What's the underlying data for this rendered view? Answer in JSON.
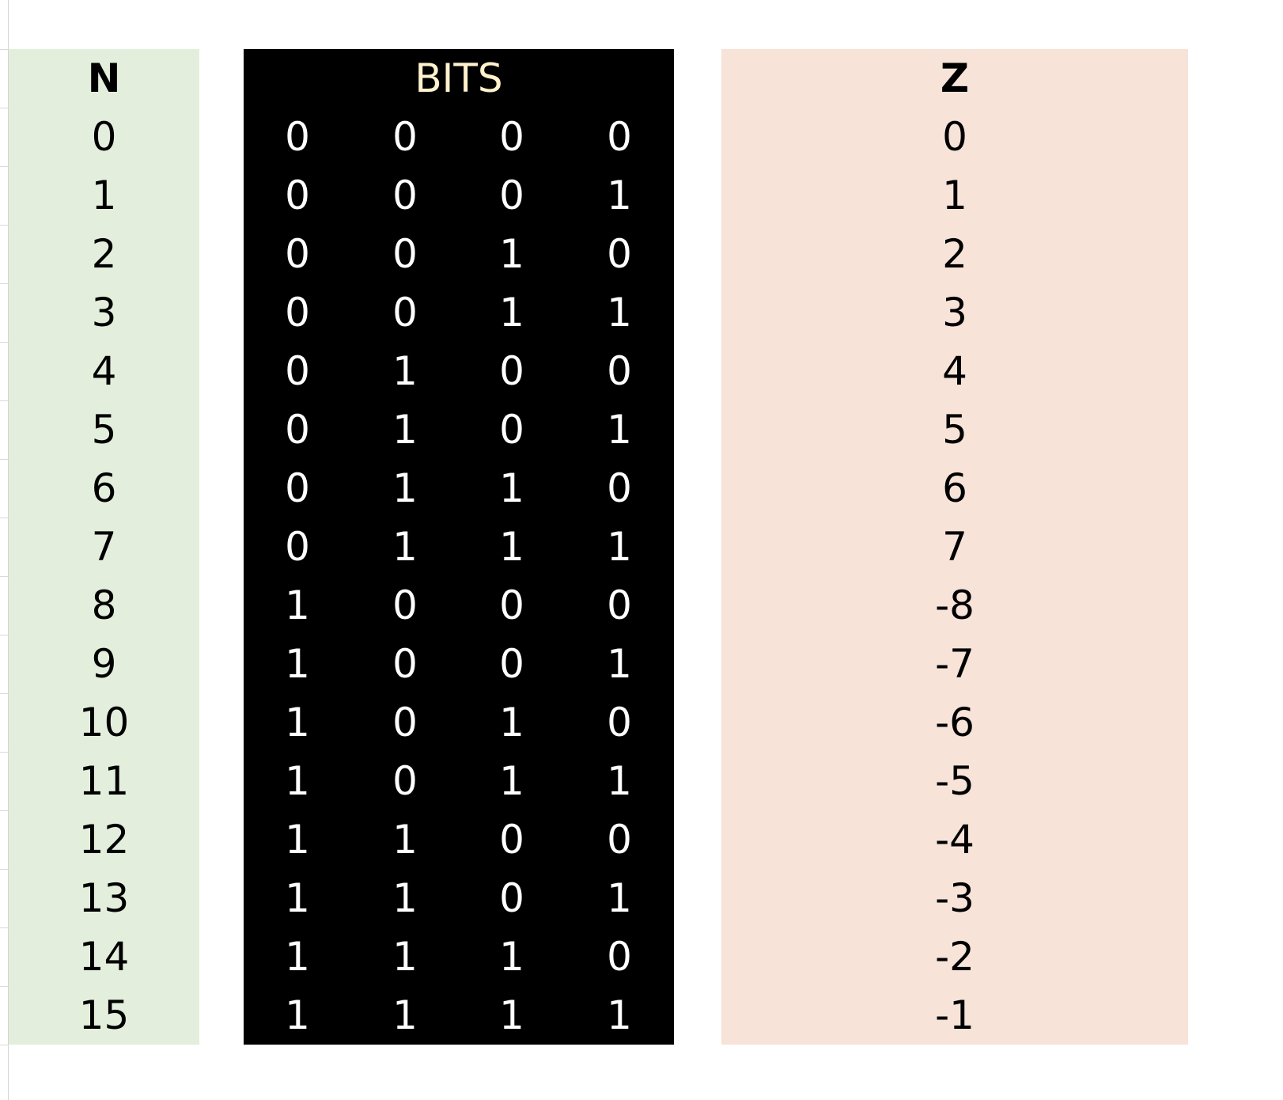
{
  "headers": {
    "n": "N",
    "bits": "BITS",
    "z": "Z"
  },
  "rows": [
    {
      "n": "0",
      "bits": [
        "0",
        "0",
        "0",
        "0"
      ],
      "z": "0"
    },
    {
      "n": "1",
      "bits": [
        "0",
        "0",
        "0",
        "1"
      ],
      "z": "1"
    },
    {
      "n": "2",
      "bits": [
        "0",
        "0",
        "1",
        "0"
      ],
      "z": "2"
    },
    {
      "n": "3",
      "bits": [
        "0",
        "0",
        "1",
        "1"
      ],
      "z": "3"
    },
    {
      "n": "4",
      "bits": [
        "0",
        "1",
        "0",
        "0"
      ],
      "z": "4"
    },
    {
      "n": "5",
      "bits": [
        "0",
        "1",
        "0",
        "1"
      ],
      "z": "5"
    },
    {
      "n": "6",
      "bits": [
        "0",
        "1",
        "1",
        "0"
      ],
      "z": "6"
    },
    {
      "n": "7",
      "bits": [
        "0",
        "1",
        "1",
        "1"
      ],
      "z": "7"
    },
    {
      "n": "8",
      "bits": [
        "1",
        "0",
        "0",
        "0"
      ],
      "z": "-8"
    },
    {
      "n": "9",
      "bits": [
        "1",
        "0",
        "0",
        "1"
      ],
      "z": "-7"
    },
    {
      "n": "10",
      "bits": [
        "1",
        "0",
        "1",
        "0"
      ],
      "z": "-6"
    },
    {
      "n": "11",
      "bits": [
        "1",
        "0",
        "1",
        "1"
      ],
      "z": "-5"
    },
    {
      "n": "12",
      "bits": [
        "1",
        "1",
        "0",
        "0"
      ],
      "z": "-4"
    },
    {
      "n": "13",
      "bits": [
        "1",
        "1",
        "0",
        "1"
      ],
      "z": "-3"
    },
    {
      "n": "14",
      "bits": [
        "1",
        "1",
        "1",
        "0"
      ],
      "z": "-2"
    },
    {
      "n": "15",
      "bits": [
        "1",
        "1",
        "1",
        "1"
      ],
      "z": "-1"
    }
  ],
  "colors": {
    "n_column_fill": "#e3efdc",
    "bits_column_fill": "#000000",
    "bits_header_text": "#fff2cc",
    "bits_text": "#ffffff",
    "z_column_fill": "#f7e3d8"
  }
}
